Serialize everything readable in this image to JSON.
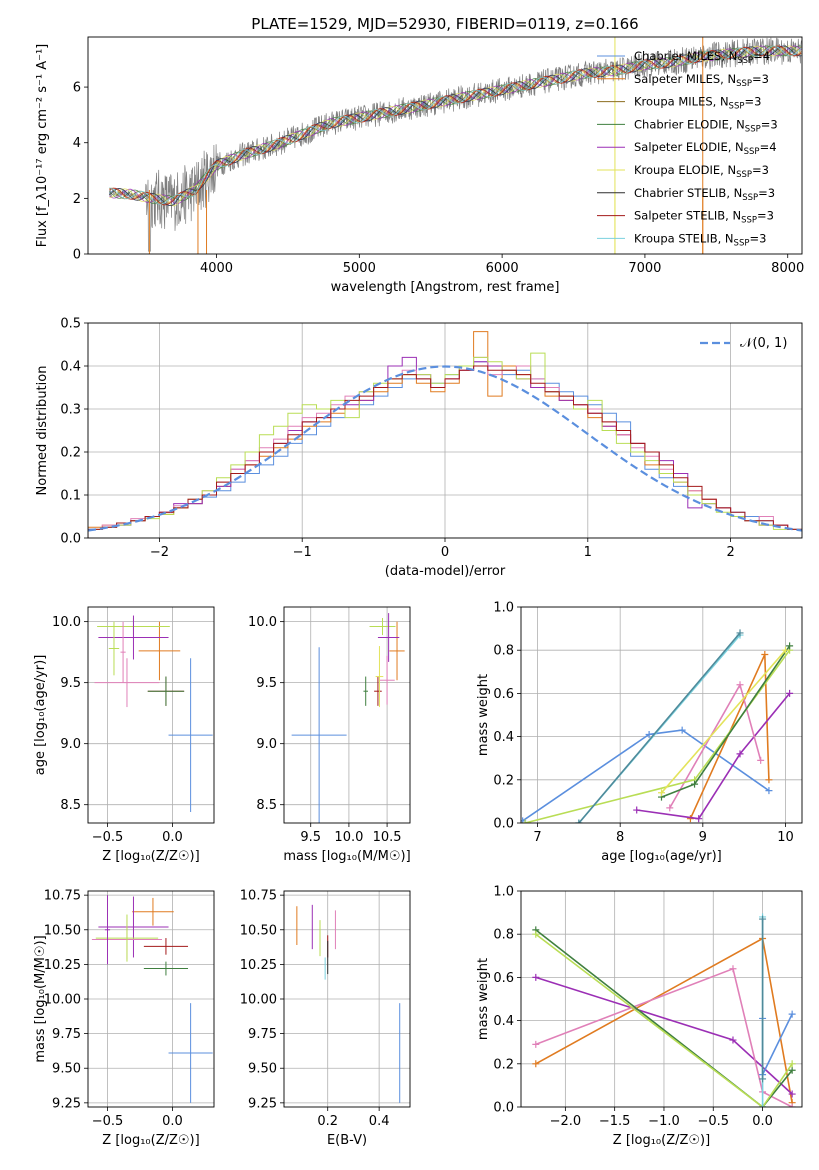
{
  "figure_title": "PLATE=1529, MJD=52930, FIBERID=0119, z=0.166",
  "model_colors": [
    "#5b8fde",
    "#e07b20",
    "#8c6d1f",
    "#3f7f3f",
    "#9b2fb5",
    "#e3e35a",
    "#2f2f2f",
    "#a3191a",
    "#7ad1de",
    "#e080b8",
    "#b9dd55",
    "#4f8a9a"
  ],
  "chart_data": [
    {
      "id": "spectrum",
      "type": "line",
      "title": "PLATE=1529, MJD=52930, FIBERID=0119, z=0.166",
      "xlabel": "wavelength [Angstrom, rest frame]",
      "ylabel": "Flux [f_λ10⁻¹⁷ erg cm⁻² s⁻¹ A⁻¹]",
      "xlim": [
        3100,
        8100
      ],
      "ylim": [
        0,
        7.8
      ],
      "xticks": [
        4000,
        5000,
        6000,
        7000,
        8000
      ],
      "yticks": [
        0,
        2,
        4,
        6
      ],
      "legend_position": "top-right",
      "legend": [
        "Chabrier MILES, N_SSP=4",
        "Salpeter MILES, N_SSP=3",
        "Kroupa MILES, N_SSP=3",
        "Chabrier ELODIE, N_SSP=3",
        "Salpeter ELODIE, N_SSP=4",
        "Kroupa ELODIE, N_SSP=3",
        "Chabrier STELIB, N_SSP=3",
        "Salpeter STELIB, N_SSP=3",
        "Kroupa STELIB, N_SSP=3"
      ],
      "legend_colors": [
        "#5b8fde",
        "#e07b20",
        "#8c6d1f",
        "#3f7f3f",
        "#9b2fb5",
        "#e3e35a",
        "#2f2f2f",
        "#a3191a",
        "#7ad1de"
      ],
      "data_color": "#7f7f7f",
      "continuum_x": [
        3250,
        3400,
        3550,
        3700,
        3850,
        4000,
        4200,
        4400,
        4600,
        4800,
        5000,
        5200,
        5400,
        5600,
        5800,
        6000,
        6200,
        6400,
        6600,
        6800,
        7000,
        7200,
        7400,
        7600,
        7800,
        8000
      ],
      "continuum_y": [
        2.2,
        2.15,
        2.0,
        1.9,
        2.3,
        3.2,
        3.6,
        3.9,
        4.3,
        4.7,
        4.9,
        5.1,
        5.3,
        5.5,
        5.7,
        5.9,
        6.1,
        6.3,
        6.5,
        6.6,
        6.8,
        6.9,
        7.1,
        7.2,
        7.3,
        7.3
      ]
    },
    {
      "id": "residuals",
      "type": "histogram",
      "xlabel": "(data-model)/error",
      "ylabel": "Normed distribution",
      "xlim": [
        -2.5,
        2.5
      ],
      "ylim": [
        0,
        0.5
      ],
      "xticks": [
        -2,
        -1,
        0,
        1,
        2
      ],
      "yticks": [
        0.0,
        0.1,
        0.2,
        0.3,
        0.4,
        0.5
      ],
      "grid": true,
      "legend": [
        "𝒩(0, 1)"
      ],
      "legend_position": "top-right",
      "bin_edges_start": -2.5,
      "bin_width": 0.1,
      "histograms": [
        {
          "color": "#5b8fde",
          "values": [
            0.02,
            0.025,
            0.03,
            0.04,
            0.05,
            0.06,
            0.07,
            0.08,
            0.095,
            0.11,
            0.13,
            0.15,
            0.17,
            0.19,
            0.22,
            0.24,
            0.26,
            0.28,
            0.3,
            0.31,
            0.33,
            0.35,
            0.37,
            0.37,
            0.36,
            0.38,
            0.39,
            0.41,
            0.4,
            0.38,
            0.39,
            0.37,
            0.36,
            0.34,
            0.33,
            0.31,
            0.29,
            0.27,
            0.19,
            0.16,
            0.14,
            0.12,
            0.1,
            0.08,
            0.07,
            0.06,
            0.05,
            0.04,
            0.03,
            0.02
          ]
        },
        {
          "color": "#e07b20",
          "values": [
            0.025,
            0.03,
            0.035,
            0.04,
            0.05,
            0.055,
            0.07,
            0.08,
            0.1,
            0.12,
            0.15,
            0.17,
            0.19,
            0.21,
            0.23,
            0.26,
            0.27,
            0.29,
            0.3,
            0.32,
            0.34,
            0.36,
            0.38,
            0.36,
            0.34,
            0.36,
            0.4,
            0.48,
            0.33,
            0.4,
            0.38,
            0.35,
            0.33,
            0.32,
            0.3,
            0.28,
            0.26,
            0.24,
            0.22,
            0.17,
            0.15,
            0.13,
            0.11,
            0.09,
            0.07,
            0.05,
            0.04,
            0.03,
            0.03,
            0.02
          ]
        },
        {
          "color": "#9b2fb5",
          "values": [
            0.02,
            0.025,
            0.03,
            0.04,
            0.05,
            0.06,
            0.08,
            0.08,
            0.1,
            0.12,
            0.16,
            0.18,
            0.2,
            0.22,
            0.25,
            0.27,
            0.28,
            0.3,
            0.31,
            0.32,
            0.35,
            0.4,
            0.42,
            0.38,
            0.35,
            0.37,
            0.39,
            0.41,
            0.4,
            0.39,
            0.37,
            0.35,
            0.34,
            0.32,
            0.31,
            0.29,
            0.26,
            0.24,
            0.22,
            0.2,
            0.18,
            0.15,
            0.07,
            0.08,
            0.07,
            0.05,
            0.04,
            0.03,
            0.03,
            0.02
          ]
        },
        {
          "color": "#e080b8",
          "values": [
            0.02,
            0.03,
            0.035,
            0.045,
            0.05,
            0.06,
            0.075,
            0.09,
            0.11,
            0.13,
            0.16,
            0.18,
            0.21,
            0.23,
            0.26,
            0.28,
            0.29,
            0.31,
            0.33,
            0.34,
            0.35,
            0.37,
            0.39,
            0.37,
            0.35,
            0.37,
            0.39,
            0.42,
            0.38,
            0.39,
            0.4,
            0.37,
            0.35,
            0.33,
            0.31,
            0.3,
            0.27,
            0.24,
            0.21,
            0.19,
            0.16,
            0.13,
            0.11,
            0.09,
            0.07,
            0.05,
            0.04,
            0.05,
            0.03,
            0.02
          ]
        },
        {
          "color": "#b9dd55",
          "values": [
            0.02,
            0.025,
            0.03,
            0.04,
            0.045,
            0.055,
            0.07,
            0.09,
            0.11,
            0.14,
            0.17,
            0.2,
            0.24,
            0.26,
            0.29,
            0.31,
            0.3,
            0.32,
            0.28,
            0.34,
            0.36,
            0.37,
            0.38,
            0.38,
            0.36,
            0.38,
            0.4,
            0.42,
            0.41,
            0.39,
            0.37,
            0.43,
            0.34,
            0.33,
            0.3,
            0.32,
            0.25,
            0.22,
            0.2,
            0.18,
            0.15,
            0.13,
            0.1,
            0.08,
            0.06,
            0.05,
            0.04,
            0.03,
            0.02,
            0.02
          ]
        },
        {
          "color": "#a3191a",
          "values": [
            0.02,
            0.025,
            0.035,
            0.04,
            0.05,
            0.06,
            0.07,
            0.09,
            0.1,
            0.13,
            0.15,
            0.17,
            0.2,
            0.22,
            0.24,
            0.27,
            0.28,
            0.3,
            0.32,
            0.33,
            0.35,
            0.37,
            0.38,
            0.37,
            0.35,
            0.37,
            0.39,
            0.4,
            0.39,
            0.39,
            0.38,
            0.36,
            0.34,
            0.33,
            0.31,
            0.29,
            0.27,
            0.25,
            0.22,
            0.2,
            0.17,
            0.14,
            0.12,
            0.09,
            0.07,
            0.06,
            0.04,
            0.04,
            0.03,
            0.02
          ]
        }
      ],
      "normal_curve": {
        "mean": 0,
        "sigma": 1,
        "color": "#5b8fde"
      }
    },
    {
      "id": "age_vs_Z",
      "type": "errorbar",
      "xlabel": "Z [log₁₀(Z/Z☉)]",
      "ylabel": "age  [log₁₀(age/yr)]",
      "xlim": [
        -0.65,
        0.32
      ],
      "ylim": [
        8.35,
        10.12
      ],
      "xticks": [
        -0.5,
        0.0
      ],
      "yticks": [
        8.5,
        9.0,
        9.5,
        10.0
      ],
      "grid": true,
      "points": [
        {
          "x": 0.14,
          "xerr": 0.17,
          "y": 9.07,
          "yerr": 0.63,
          "color": "#5b8fde"
        },
        {
          "x": -0.1,
          "xerr": 0.16,
          "y": 9.76,
          "yerr": 0.24,
          "color": "#e07b20"
        },
        {
          "x": -0.3,
          "xerr": 0.28,
          "y": 9.96,
          "yerr": 0.07,
          "color": "#b9dd55"
        },
        {
          "x": -0.35,
          "xerr": 0.25,
          "y": 9.5,
          "yerr": 0.2,
          "color": "#e080b8"
        },
        {
          "x": -0.3,
          "xerr": 0.27,
          "y": 9.87,
          "yerr": 0.18,
          "color": "#9b2fb5"
        },
        {
          "x": -0.05,
          "xerr": 0.14,
          "y": 9.43,
          "yerr": 0.12,
          "color": "#a3191a"
        },
        {
          "x": -0.05,
          "xerr": 0.14,
          "y": 9.43,
          "yerr": 0.12,
          "color": "#3f7f3f"
        },
        {
          "x": -0.45,
          "xerr": 0.04,
          "y": 9.78,
          "yerr": 0.22,
          "color": "#b9dd55"
        },
        {
          "x": -0.38,
          "xerr": 0.02,
          "y": 9.75,
          "yerr": 0.25,
          "color": "#e080b8"
        }
      ]
    },
    {
      "id": "age_vs_mass",
      "type": "errorbar",
      "xlabel": "mass [log₁₀(M/M☉)]",
      "ylabel": "",
      "xlim": [
        9.15,
        10.8
      ],
      "ylim": [
        8.35,
        10.12
      ],
      "xticks": [
        9.5,
        10.0,
        10.5
      ],
      "yticks": [
        8.5,
        9.0,
        9.5,
        10.0
      ],
      "grid": true,
      "points": [
        {
          "x": 9.61,
          "xerr": 0.36,
          "y": 9.07,
          "yerr": 0.72,
          "color": "#5b8fde"
        },
        {
          "x": 10.63,
          "xerr": 0.1,
          "y": 9.76,
          "yerr": 0.24,
          "color": "#e07b20"
        },
        {
          "x": 10.44,
          "xerr": 0.17,
          "y": 9.96,
          "yerr": 0.07,
          "color": "#b9dd55"
        },
        {
          "x": 10.5,
          "xerr": 0.1,
          "y": 9.52,
          "yerr": 0.2,
          "color": "#e080b8"
        },
        {
          "x": 10.52,
          "xerr": 0.14,
          "y": 9.87,
          "yerr": 0.2,
          "color": "#9b2fb5"
        },
        {
          "x": 10.38,
          "xerr": 0.05,
          "y": 9.43,
          "yerr": 0.12,
          "color": "#a3191a"
        },
        {
          "x": 10.22,
          "xerr": 0.03,
          "y": 9.43,
          "yerr": 0.12,
          "color": "#3f7f3f"
        },
        {
          "x": 10.4,
          "xerr": 0.05,
          "y": 9.55,
          "yerr": 0.25,
          "color": "#e3e35a"
        }
      ]
    },
    {
      "id": "massweight_vs_age",
      "type": "line",
      "xlabel": "age  [log₁₀(age/yr)]",
      "ylabel": "mass weight",
      "xlim": [
        6.8,
        10.2
      ],
      "ylim": [
        0,
        1.0
      ],
      "xticks": [
        7,
        8,
        9,
        10
      ],
      "yticks": [
        0.0,
        0.2,
        0.4,
        0.6,
        0.8,
        1.0
      ],
      "grid": true,
      "series": [
        {
          "color": "#5b8fde",
          "x": [
            6.82,
            8.35,
            8.75,
            9.8
          ],
          "y": [
            0.01,
            0.41,
            0.43,
            0.15
          ]
        },
        {
          "color": "#e07b20",
          "x": [
            8.85,
            9.75,
            9.8
          ],
          "y": [
            0.02,
            0.78,
            0.2
          ]
        },
        {
          "color": "#9b2fb5",
          "x": [
            8.2,
            8.95,
            9.45,
            10.05
          ],
          "y": [
            0.06,
            0.02,
            0.32,
            0.6
          ]
        },
        {
          "color": "#e080b8",
          "x": [
            8.6,
            9.45,
            9.7
          ],
          "y": [
            0.07,
            0.64,
            0.29
          ]
        },
        {
          "color": "#b9dd55",
          "x": [
            6.85,
            8.9,
            10.05
          ],
          "y": [
            0.0,
            0.2,
            0.8
          ]
        },
        {
          "color": "#3f7f3f",
          "x": [
            8.5,
            8.9,
            10.05
          ],
          "y": [
            0.12,
            0.18,
            0.82
          ]
        },
        {
          "color": "#7ad1de",
          "x": [
            7.5,
            9.45
          ],
          "y": [
            0.0,
            0.87
          ]
        },
        {
          "color": "#e3e35a",
          "x": [
            8.5,
            10.0
          ],
          "y": [
            0.14,
            0.8
          ]
        },
        {
          "color": "#4f8a9a",
          "x": [
            7.5,
            9.45
          ],
          "y": [
            0.0,
            0.88
          ]
        }
      ]
    },
    {
      "id": "mass_vs_Z",
      "type": "errorbar",
      "xlabel": "Z [log₁₀(Z/Z☉)]",
      "ylabel": "mass [log₁₀(M/M☉)]",
      "xlim": [
        -0.65,
        0.32
      ],
      "ylim": [
        9.22,
        10.78
      ],
      "xticks": [
        -0.5,
        0.0
      ],
      "yticks": [
        9.25,
        9.5,
        9.75,
        10.0,
        10.25,
        10.5,
        10.75
      ],
      "grid": true,
      "points": [
        {
          "x": 0.14,
          "xerr": 0.17,
          "y": 9.61,
          "yerr": 0.36,
          "color": "#5b8fde"
        },
        {
          "x": -0.15,
          "xerr": 0.16,
          "y": 10.63,
          "yerr": 0.1,
          "color": "#e07b20"
        },
        {
          "x": -0.3,
          "xerr": 0.27,
          "y": 10.52,
          "yerr": 0.22,
          "color": "#9b2fb5"
        },
        {
          "x": -0.35,
          "xerr": 0.27,
          "y": 10.43,
          "yerr": 0.14,
          "color": "#e080b8"
        },
        {
          "x": -0.35,
          "xerr": 0.24,
          "y": 10.44,
          "yerr": 0.17,
          "color": "#b9dd55"
        },
        {
          "x": -0.05,
          "xerr": 0.17,
          "y": 10.38,
          "yerr": 0.06,
          "color": "#a3191a"
        },
        {
          "x": -0.05,
          "xerr": 0.17,
          "y": 10.22,
          "yerr": 0.05,
          "color": "#3f7f3f"
        },
        {
          "x": -0.5,
          "xerr": 0.02,
          "y": 10.5,
          "yerr": 0.25,
          "color": "#9b2fb5"
        }
      ]
    },
    {
      "id": "mass_vs_ebv",
      "type": "errorbar",
      "xlabel": "E(B-V)",
      "ylabel": "",
      "xlim": [
        0.03,
        0.52
      ],
      "ylim": [
        9.22,
        10.78
      ],
      "xticks": [
        0.2,
        0.4
      ],
      "yticks": [
        9.25,
        9.5,
        9.75,
        10.0,
        10.25,
        10.5,
        10.75
      ],
      "grid": true,
      "points": [
        {
          "x": 0.48,
          "xerr": 0.0,
          "y": 9.61,
          "yerr": 0.36,
          "color": "#5b8fde"
        },
        {
          "x": 0.08,
          "xerr": 0.0,
          "y": 10.53,
          "yerr": 0.14,
          "color": "#e07b20"
        },
        {
          "x": 0.14,
          "xerr": 0.0,
          "y": 10.52,
          "yerr": 0.16,
          "color": "#9b2fb5"
        },
        {
          "x": 0.23,
          "xerr": 0.0,
          "y": 10.5,
          "yerr": 0.14,
          "color": "#e080b8"
        },
        {
          "x": 0.17,
          "xerr": 0.0,
          "y": 10.44,
          "yerr": 0.13,
          "color": "#b9dd55"
        },
        {
          "x": 0.2,
          "xerr": 0.0,
          "y": 10.38,
          "yerr": 0.08,
          "color": "#a3191a"
        },
        {
          "x": 0.19,
          "xerr": 0.0,
          "y": 10.22,
          "yerr": 0.08,
          "color": "#7ad1de"
        },
        {
          "x": 0.2,
          "xerr": 0.0,
          "y": 10.3,
          "yerr": 0.12,
          "color": "#2f2f2f"
        }
      ]
    },
    {
      "id": "massweight_vs_Z",
      "type": "line",
      "xlabel": "Z [log₁₀(Z/Z☉)]",
      "ylabel": "mass weight",
      "xlim": [
        -2.45,
        0.4
      ],
      "ylim": [
        0,
        1.0
      ],
      "xticks": [
        -2.0,
        -1.5,
        -1.0,
        -0.5,
        0.0
      ],
      "yticks": [
        0.0,
        0.2,
        0.4,
        0.6,
        0.8,
        1.0
      ],
      "grid": true,
      "series": [
        {
          "color": "#e07b20",
          "x": [
            -2.3,
            0.0,
            0.3
          ],
          "y": [
            0.2,
            0.78,
            0.02
          ]
        },
        {
          "color": "#9b2fb5",
          "x": [
            -2.3,
            -0.3,
            0.3
          ],
          "y": [
            0.6,
            0.31,
            0.06
          ]
        },
        {
          "color": "#e080b8",
          "x": [
            -2.3,
            -0.3,
            0.0,
            0.3
          ],
          "y": [
            0.29,
            0.64,
            0.07,
            0.0
          ]
        },
        {
          "color": "#3f7f3f",
          "x": [
            -2.3,
            0.0,
            0.3
          ],
          "y": [
            0.82,
            0.0,
            0.17
          ]
        },
        {
          "color": "#b9dd55",
          "x": [
            -2.3,
            0.0,
            0.3
          ],
          "y": [
            0.8,
            0.0,
            0.2
          ]
        },
        {
          "color": "#5b8fde",
          "x": [
            0.0,
            0.0,
            0.3
          ],
          "y": [
            0.41,
            0.15,
            0.43
          ]
        },
        {
          "color": "#7ad1de",
          "x": [
            0.0,
            0.0
          ],
          "y": [
            0.88,
            0.0
          ]
        },
        {
          "color": "#4f8a9a",
          "x": [
            0.0,
            0.0
          ],
          "y": [
            0.87,
            0.13
          ]
        }
      ]
    }
  ]
}
